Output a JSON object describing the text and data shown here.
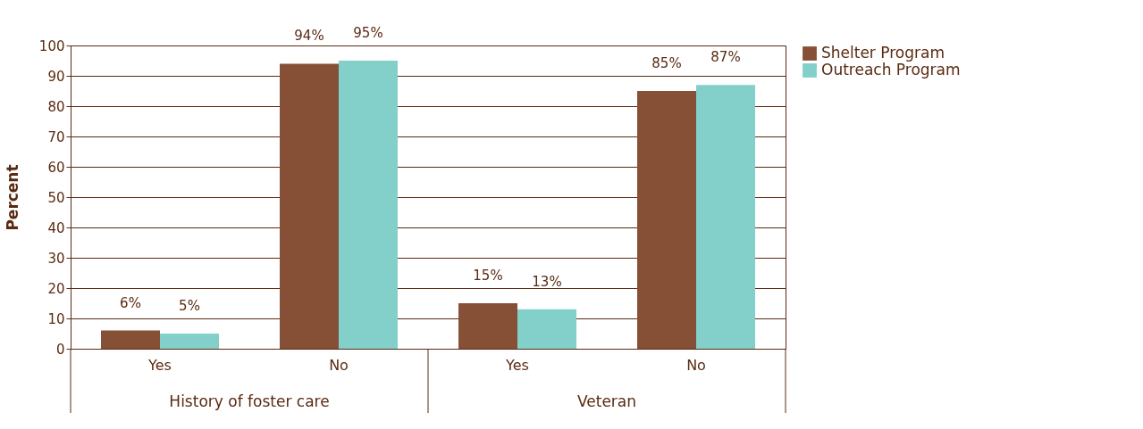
{
  "chart_data": {
    "type": "bar",
    "ylabel": "Percent",
    "categories": [
      "Yes",
      "No",
      "Yes",
      "No"
    ],
    "series": [
      {
        "name": "Shelter Program",
        "color": "#855035",
        "values": [
          6,
          94,
          15,
          85
        ],
        "value_labels": [
          "6%",
          "94%",
          "15%",
          "85%"
        ]
      },
      {
        "name": "Outreach Program",
        "color": "#82d0c9",
        "values": [
          5,
          95,
          13,
          87
        ],
        "value_labels": [
          "5%",
          "95%",
          "13%",
          "87%"
        ]
      }
    ],
    "annotations": [
      "History of foster care",
      "Veteran"
    ],
    "ylim": [
      0,
      100
    ],
    "yticks": [
      0,
      10,
      20,
      30,
      40,
      50,
      60,
      70,
      80,
      90,
      100
    ],
    "grid": "y",
    "legend": "right"
  }
}
